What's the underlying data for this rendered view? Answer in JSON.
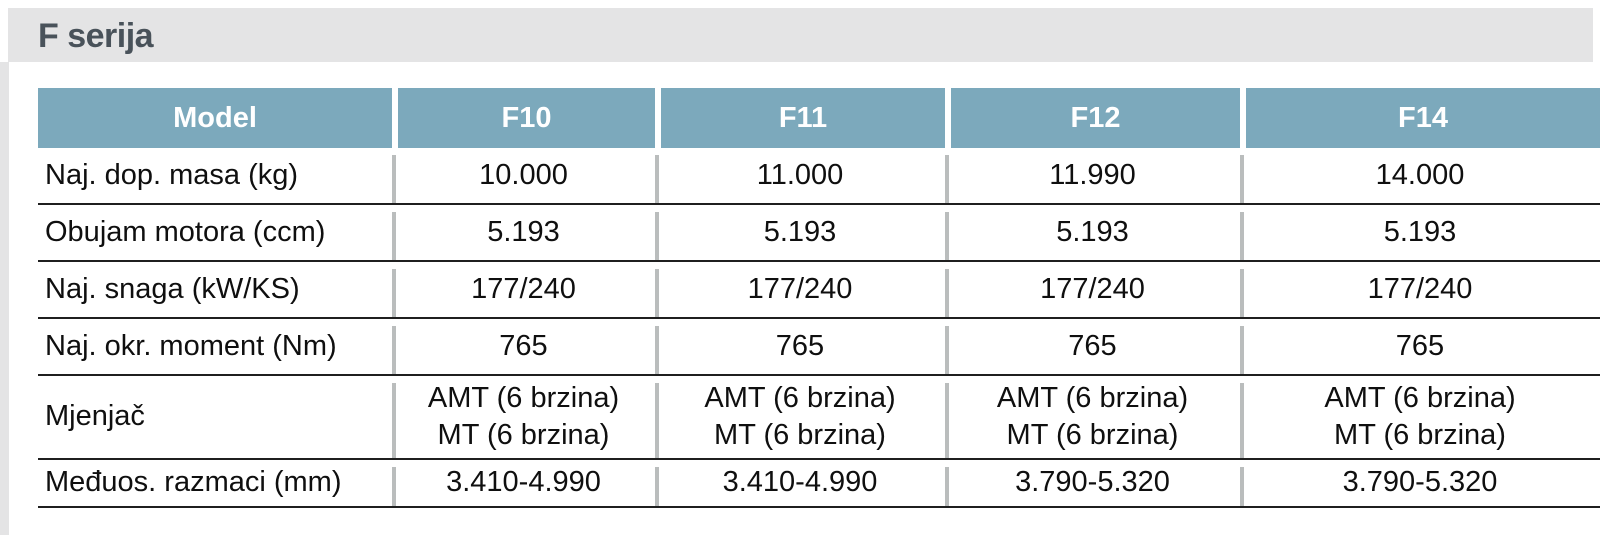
{
  "page": {
    "title": "F serija"
  },
  "colors": {
    "banner_bg": "#e4e4e5",
    "title_text": "#49525a",
    "header_bg": "#7ca9bc",
    "header_text": "#ffffff",
    "body_text": "#0f0f0f",
    "row_rule": "#1f1f1f",
    "column_separator": "#babdbd"
  },
  "chart_data": {
    "type": "table",
    "title": "F serija",
    "columns": [
      "Model",
      "F10",
      "F11",
      "F12",
      "F14"
    ],
    "rows": [
      {
        "label": "Naj. dop. masa (kg)",
        "values": [
          "10.000",
          "11.000",
          "11.990",
          "14.000"
        ]
      },
      {
        "label": "Obujam motora (ccm)",
        "values": [
          "5.193",
          "5.193",
          "5.193",
          "5.193"
        ]
      },
      {
        "label": "Naj. snaga (kW/KS)",
        "values": [
          "177/240",
          "177/240",
          "177/240",
          "177/240"
        ]
      },
      {
        "label": "Naj. okr. moment (Nm)",
        "values": [
          "765",
          "765",
          "765",
          "765"
        ]
      },
      {
        "label": "Mjenjač",
        "values": [
          "AMT (6 brzina)\nMT (6 brzina)",
          "AMT (6 brzina)\nMT (6 brzina)",
          "AMT (6 brzina)\nMT (6 brzina)",
          "AMT (6 brzina)\nMT (6 brzina)"
        ]
      },
      {
        "label": "Međuos. razmaci (mm)",
        "values": [
          "3.410-4.990",
          "3.410-4.990",
          "3.790-5.320",
          "3.790-5.320"
        ]
      }
    ]
  }
}
